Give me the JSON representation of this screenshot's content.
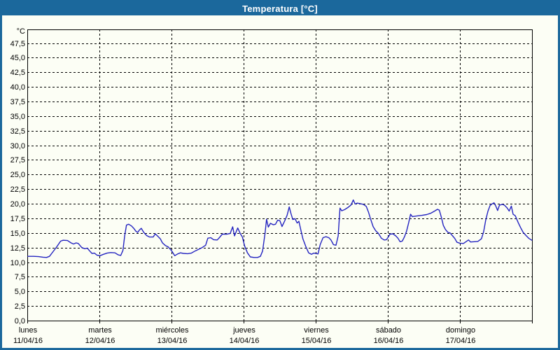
{
  "window": {
    "title": "Temperatura [°C]"
  },
  "colors": {
    "accent": "#1b689c",
    "line": "#2424c0",
    "background": "#fcfef5",
    "grid": "#000000",
    "title_text": "#ffffff"
  },
  "chart_data": {
    "type": "line",
    "title": "Temperatura [°C]",
    "y_unit_label": "°C",
    "ylim": [
      0,
      47.5
    ],
    "ytick_step": 2.5,
    "ytick_labels": [
      "0,0",
      "2,5",
      "5,0",
      "7,5",
      "10,0",
      "12,5",
      "15,0",
      "17,5",
      "20,0",
      "22,5",
      "25,0",
      "27,5",
      "30,0",
      "32,5",
      "35,0",
      "37,5",
      "40,0",
      "42,5",
      "45,0",
      "47,5"
    ],
    "xlim_days": [
      0,
      7
    ],
    "grid": "dashed",
    "x_days": [
      {
        "name": "lunes",
        "date": "11/04/16"
      },
      {
        "name": "martes",
        "date": "12/04/16"
      },
      {
        "name": "miércoles",
        "date": "13/04/16"
      },
      {
        "name": "jueves",
        "date": "14/04/16"
      },
      {
        "name": "viernes",
        "date": "15/04/16"
      },
      {
        "name": "sábado",
        "date": "16/04/16"
      },
      {
        "name": "domingo",
        "date": "17/04/16"
      }
    ],
    "series": [
      {
        "name": "Temperatura",
        "color": "#2424c0",
        "points": [
          [
            0.0,
            11.0
          ],
          [
            0.08,
            11.0
          ],
          [
            0.15,
            10.95
          ],
          [
            0.21,
            10.85
          ],
          [
            0.26,
            10.8
          ],
          [
            0.3,
            11.0
          ],
          [
            0.35,
            11.8
          ],
          [
            0.4,
            12.6
          ],
          [
            0.455,
            13.6
          ],
          [
            0.49,
            13.75
          ],
          [
            0.55,
            13.7
          ],
          [
            0.6,
            13.3
          ],
          [
            0.635,
            13.1
          ],
          [
            0.67,
            13.3
          ],
          [
            0.7,
            13.2
          ],
          [
            0.75,
            12.5
          ],
          [
            0.79,
            12.3
          ],
          [
            0.825,
            12.4
          ],
          [
            0.86,
            11.9
          ],
          [
            0.89,
            11.5
          ],
          [
            0.925,
            11.55
          ],
          [
            0.96,
            11.2
          ],
          [
            1.0,
            11.1
          ],
          [
            1.05,
            11.35
          ],
          [
            1.1,
            11.55
          ],
          [
            1.15,
            11.65
          ],
          [
            1.21,
            11.6
          ],
          [
            1.255,
            11.25
          ],
          [
            1.29,
            11.15
          ],
          [
            1.32,
            12.0
          ],
          [
            1.345,
            14.5
          ],
          [
            1.37,
            16.35
          ],
          [
            1.4,
            16.5
          ],
          [
            1.44,
            16.2
          ],
          [
            1.47,
            15.8
          ],
          [
            1.5,
            15.3
          ],
          [
            1.525,
            15.1
          ],
          [
            1.55,
            15.5
          ],
          [
            1.575,
            15.8
          ],
          [
            1.61,
            15.1
          ],
          [
            1.65,
            14.55
          ],
          [
            1.69,
            14.3
          ],
          [
            1.74,
            14.3
          ],
          [
            1.77,
            14.85
          ],
          [
            1.8,
            14.5
          ],
          [
            1.84,
            14.0
          ],
          [
            1.87,
            13.3
          ],
          [
            1.91,
            12.85
          ],
          [
            1.95,
            12.6
          ],
          [
            2.0,
            11.9
          ],
          [
            2.04,
            11.1
          ],
          [
            2.08,
            11.4
          ],
          [
            2.12,
            11.6
          ],
          [
            2.16,
            11.5
          ],
          [
            2.22,
            11.45
          ],
          [
            2.27,
            11.55
          ],
          [
            2.32,
            11.9
          ],
          [
            2.37,
            12.2
          ],
          [
            2.42,
            12.5
          ],
          [
            2.47,
            12.9
          ],
          [
            2.5,
            14.1
          ],
          [
            2.54,
            14.2
          ],
          [
            2.58,
            13.85
          ],
          [
            2.63,
            13.8
          ],
          [
            2.66,
            14.2
          ],
          [
            2.7,
            14.8
          ],
          [
            2.76,
            14.8
          ],
          [
            2.81,
            14.9
          ],
          [
            2.845,
            16.05
          ],
          [
            2.87,
            14.5
          ],
          [
            2.915,
            15.85
          ],
          [
            2.95,
            14.9
          ],
          [
            2.98,
            14.3
          ],
          [
            3.01,
            12.8
          ],
          [
            3.05,
            11.6
          ],
          [
            3.09,
            10.9
          ],
          [
            3.14,
            10.8
          ],
          [
            3.19,
            10.8
          ],
          [
            3.23,
            11.0
          ],
          [
            3.26,
            11.9
          ],
          [
            3.295,
            15.0
          ],
          [
            3.315,
            17.35
          ],
          [
            3.34,
            16.0
          ],
          [
            3.37,
            16.65
          ],
          [
            3.41,
            16.4
          ],
          [
            3.44,
            16.5
          ],
          [
            3.47,
            17.2
          ],
          [
            3.5,
            17.1
          ],
          [
            3.53,
            16.1
          ],
          [
            3.565,
            17.0
          ],
          [
            3.6,
            18.0
          ],
          [
            3.63,
            19.45
          ],
          [
            3.655,
            18.3
          ],
          [
            3.68,
            17.3
          ],
          [
            3.71,
            17.45
          ],
          [
            3.74,
            16.7
          ],
          [
            3.765,
            17.0
          ],
          [
            3.79,
            15.6
          ],
          [
            3.82,
            14.0
          ],
          [
            3.86,
            12.7
          ],
          [
            3.9,
            11.6
          ],
          [
            3.94,
            11.35
          ],
          [
            3.97,
            11.55
          ],
          [
            4.0,
            11.5
          ],
          [
            4.03,
            11.4
          ],
          [
            4.06,
            13.0
          ],
          [
            4.1,
            14.2
          ],
          [
            4.14,
            14.35
          ],
          [
            4.18,
            14.2
          ],
          [
            4.21,
            13.8
          ],
          [
            4.245,
            13.0
          ],
          [
            4.28,
            12.9
          ],
          [
            4.31,
            14.5
          ],
          [
            4.335,
            19.25
          ],
          [
            4.36,
            18.8
          ],
          [
            4.4,
            19.0
          ],
          [
            4.45,
            19.4
          ],
          [
            4.49,
            19.8
          ],
          [
            4.52,
            20.65
          ],
          [
            4.545,
            19.95
          ],
          [
            4.575,
            20.1
          ],
          [
            4.62,
            20.0
          ],
          [
            4.66,
            19.9
          ],
          [
            4.7,
            19.55
          ],
          [
            4.73,
            18.6
          ],
          [
            4.76,
            17.4
          ],
          [
            4.795,
            16.1
          ],
          [
            4.83,
            15.4
          ],
          [
            4.87,
            14.9
          ],
          [
            4.91,
            14.1
          ],
          [
            4.95,
            13.8
          ],
          [
            4.98,
            13.85
          ],
          [
            5.0,
            14.2
          ],
          [
            5.03,
            14.8
          ],
          [
            5.07,
            14.85
          ],
          [
            5.11,
            14.5
          ],
          [
            5.14,
            14.1
          ],
          [
            5.17,
            13.5
          ],
          [
            5.2,
            13.6
          ],
          [
            5.23,
            14.3
          ],
          [
            5.26,
            15.3
          ],
          [
            5.29,
            16.8
          ],
          [
            5.315,
            18.2
          ],
          [
            5.34,
            17.8
          ],
          [
            5.4,
            17.9
          ],
          [
            5.47,
            18.0
          ],
          [
            5.54,
            18.15
          ],
          [
            5.6,
            18.4
          ],
          [
            5.65,
            18.75
          ],
          [
            5.69,
            19.05
          ],
          [
            5.715,
            18.9
          ],
          [
            5.745,
            17.6
          ],
          [
            5.77,
            16.3
          ],
          [
            5.8,
            15.6
          ],
          [
            5.835,
            15.1
          ],
          [
            5.865,
            15.0
          ],
          [
            5.9,
            14.5
          ],
          [
            5.93,
            14.05
          ],
          [
            5.96,
            13.4
          ],
          [
            6.0,
            13.25
          ],
          [
            6.05,
            13.2
          ],
          [
            6.09,
            13.55
          ],
          [
            6.12,
            13.8
          ],
          [
            6.15,
            13.45
          ],
          [
            6.2,
            13.5
          ],
          [
            6.25,
            13.55
          ],
          [
            6.3,
            14.0
          ],
          [
            6.33,
            15.2
          ],
          [
            6.36,
            17.2
          ],
          [
            6.39,
            18.7
          ],
          [
            6.42,
            19.7
          ],
          [
            6.45,
            20.0
          ],
          [
            6.475,
            20.15
          ],
          [
            6.5,
            19.6
          ],
          [
            6.525,
            18.85
          ],
          [
            6.55,
            19.75
          ],
          [
            6.59,
            19.9
          ],
          [
            6.62,
            19.75
          ],
          [
            6.655,
            19.3
          ],
          [
            6.685,
            18.75
          ],
          [
            6.715,
            19.6
          ],
          [
            6.74,
            18.2
          ],
          [
            6.77,
            17.95
          ],
          [
            6.81,
            16.8
          ],
          [
            6.845,
            15.9
          ],
          [
            6.88,
            15.1
          ],
          [
            6.92,
            14.55
          ],
          [
            6.96,
            14.05
          ],
          [
            7.0,
            13.75
          ]
        ]
      }
    ]
  }
}
